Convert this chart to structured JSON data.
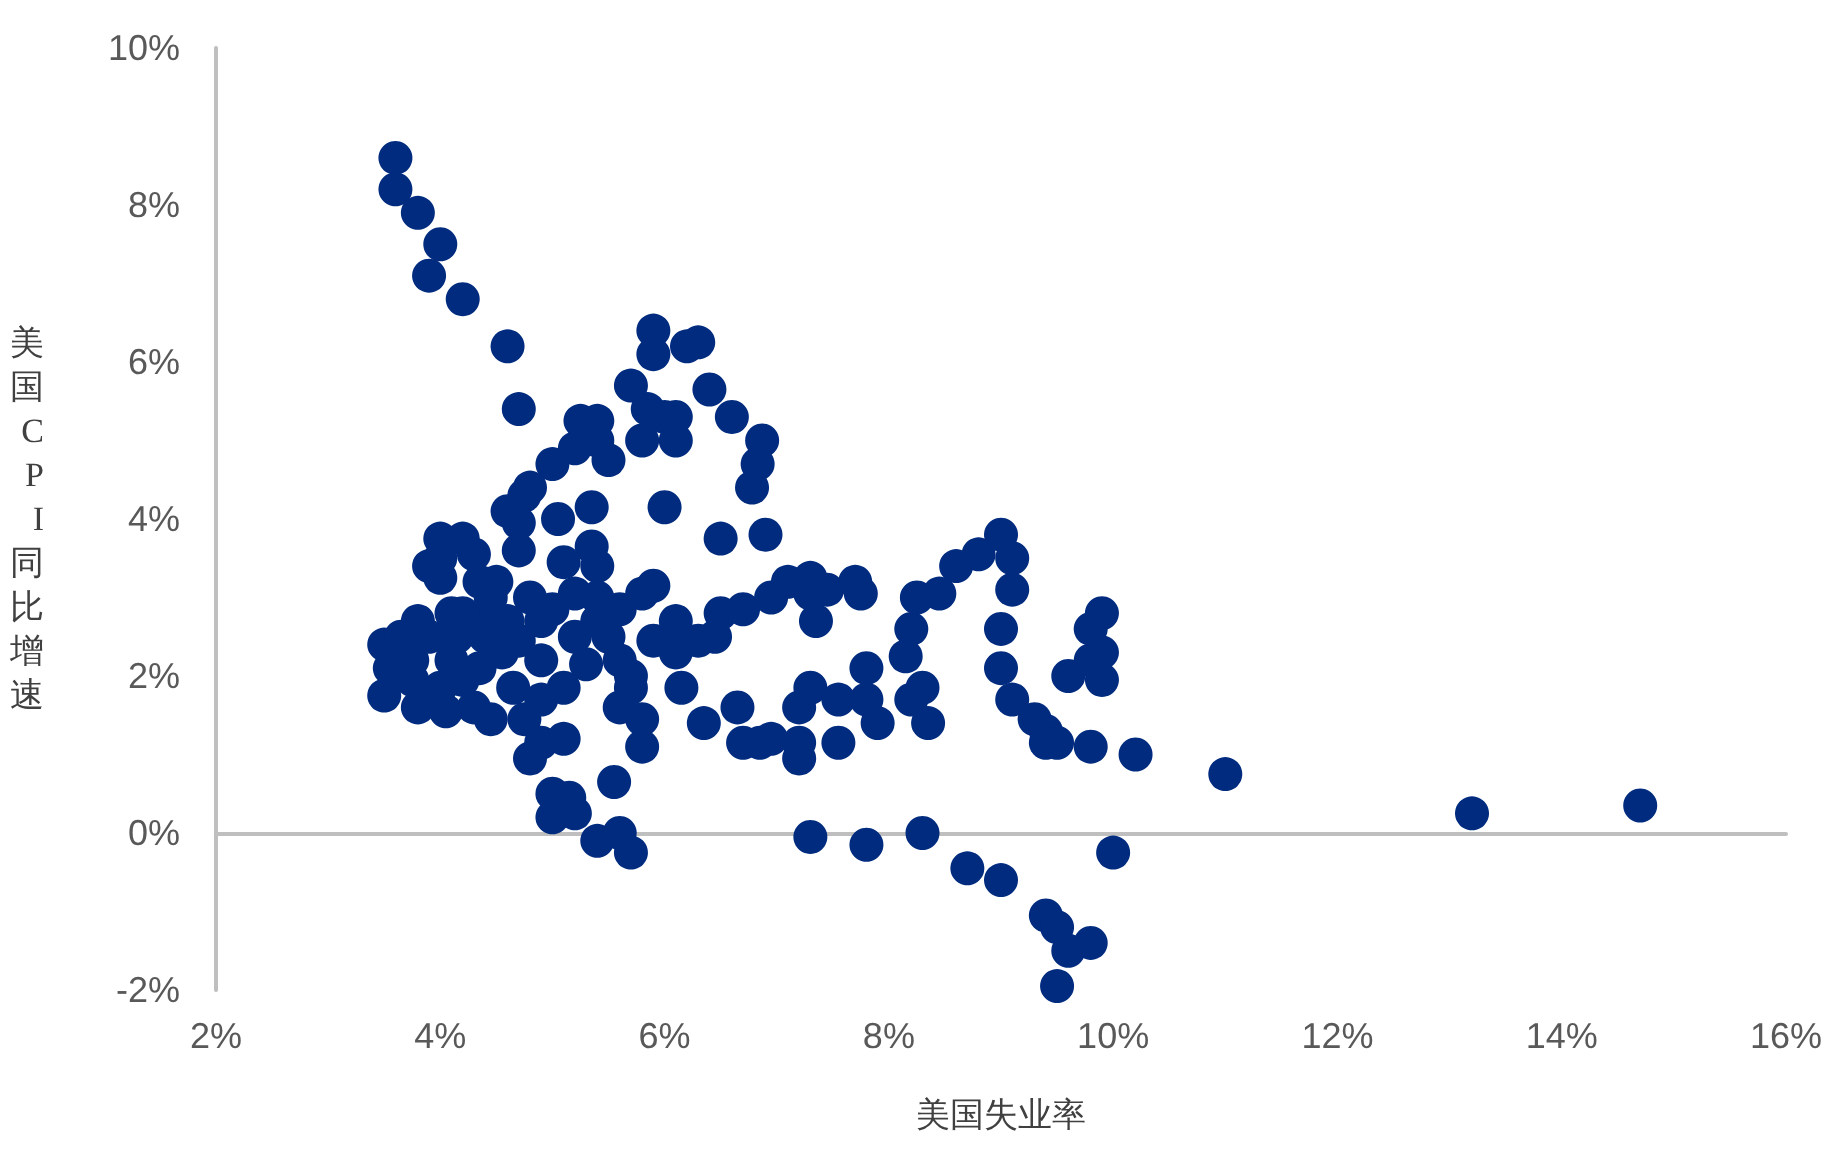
{
  "chart_data": {
    "type": "scatter",
    "xlabel": "美国失业率",
    "ylabel": "美国CPI同比增速",
    "xlim": [
      2,
      16
    ],
    "xticks": [
      {
        "value": 2,
        "label": "2%"
      },
      {
        "value": 4,
        "label": "4%"
      },
      {
        "value": 6,
        "label": "6%"
      },
      {
        "value": 8,
        "label": "8%"
      },
      {
        "value": 10,
        "label": "10%"
      },
      {
        "value": 12,
        "label": "12%"
      },
      {
        "value": 14,
        "label": "14%"
      },
      {
        "value": 16,
        "label": "16%"
      }
    ],
    "ylim": [
      -2,
      10
    ],
    "yticks": [
      {
        "value": -2,
        "label": "-2%"
      },
      {
        "value": 0,
        "label": "0%"
      },
      {
        "value": 2,
        "label": "2%"
      },
      {
        "value": 4,
        "label": "4%"
      },
      {
        "value": 6,
        "label": "6%"
      },
      {
        "value": 8,
        "label": "8%"
      },
      {
        "value": 10,
        "label": "10%"
      }
    ],
    "marker": "circle",
    "series": [
      {
        "color": "#002b7f",
        "x": [
          3.6,
          3.6,
          3.8,
          4.0,
          3.9,
          4.2,
          4.6,
          4.7,
          5.9,
          5.9,
          6.2,
          6.3,
          5.7,
          5.85,
          6.0,
          6.4,
          6.6,
          6.87,
          6.83,
          6.78,
          6.1,
          6.1,
          5.8,
          6.0,
          6.5,
          6.9,
          5.25,
          5.4,
          5.2,
          5.4,
          5.5,
          5.0,
          4.8,
          4.75,
          4.6,
          4.7,
          5.05,
          5.35,
          5.35,
          5.1,
          5.4,
          3.5,
          3.5,
          3.55,
          3.75,
          3.75,
          3.8,
          3.8,
          3.9,
          4.0,
          4.0,
          4.05,
          4.2,
          4.3,
          4.35,
          4.5,
          4.35,
          4.15,
          4.2,
          4.3,
          4.45,
          4.35,
          4.1,
          4.65,
          4.75,
          4.9,
          4.8,
          4.9,
          5.1,
          5.0,
          5.0,
          5.2,
          5.15,
          5.4,
          5.6,
          5.7,
          5.55,
          4.6,
          4.8,
          5.0,
          5.2,
          5.4,
          5.6,
          5.8,
          5.9,
          4.7,
          4.9,
          5.3,
          5.5,
          5.6,
          5.7,
          5.8,
          5.8,
          5.9,
          6.1,
          6.1,
          6.15,
          6.3,
          6.45,
          6.5,
          6.7,
          6.95,
          7.1,
          7.3,
          7.45,
          7.75,
          7.7,
          6.35,
          6.65,
          6.7,
          6.85,
          6.95,
          7.2,
          7.2,
          7.2,
          7.3,
          7.55,
          7.55,
          7.8,
          7.8,
          7.9,
          8.2,
          8.3,
          8.35,
          7.35,
          7.3,
          8.15,
          8.2,
          8.25,
          8.45,
          8.6,
          8.8,
          9.0,
          9.1,
          9.1,
          9.0,
          9.0,
          9.1,
          9.3,
          9.4,
          9.4,
          9.5,
          9.8,
          10.2,
          9.6,
          9.8,
          9.9,
          9.9,
          9.9,
          9.8,
          11.0,
          13.2,
          14.7,
          7.3,
          7.8,
          8.3,
          8.7,
          9.0,
          9.4,
          9.5,
          9.6,
          9.8,
          9.5,
          10.0,
          4.1,
          4.2,
          3.9,
          3.65,
          4.0,
          4.55,
          4.0,
          4.45,
          4.7,
          4.9,
          5.2,
          5.1,
          5.4,
          5.6,
          5.7,
          4.4
        ],
        "values": [
          8.6,
          8.2,
          7.9,
          7.5,
          7.1,
          6.8,
          6.2,
          5.4,
          6.4,
          6.1,
          6.2,
          6.25,
          5.7,
          5.4,
          5.3,
          5.65,
          5.3,
          5.0,
          4.7,
          4.4,
          5.3,
          5.0,
          5.0,
          4.15,
          3.75,
          3.8,
          5.25,
          5.25,
          4.9,
          5.0,
          4.75,
          4.7,
          4.4,
          4.3,
          4.1,
          3.95,
          4.0,
          4.15,
          3.65,
          3.45,
          3.4,
          2.4,
          1.75,
          2.1,
          1.95,
          2.2,
          1.6,
          2.7,
          3.4,
          3.75,
          3.25,
          1.55,
          3.75,
          3.55,
          3.2,
          3.2,
          2.7,
          2.5,
          1.95,
          1.6,
          1.45,
          2.1,
          2.2,
          1.85,
          1.45,
          1.7,
          0.95,
          1.15,
          1.2,
          0.5,
          0.2,
          0.25,
          0.45,
          -0.1,
          0.0,
          -0.25,
          0.65,
          2.7,
          3.0,
          2.85,
          3.05,
          3.0,
          2.85,
          3.05,
          3.15,
          2.45,
          2.2,
          2.15,
          2.5,
          2.2,
          1.85,
          1.45,
          1.1,
          2.45,
          2.7,
          2.3,
          1.85,
          2.45,
          2.5,
          2.8,
          2.85,
          3.0,
          3.2,
          3.25,
          3.1,
          3.05,
          3.2,
          1.4,
          1.6,
          1.15,
          1.15,
          1.2,
          1.6,
          0.95,
          1.15,
          1.85,
          1.7,
          1.15,
          2.1,
          1.7,
          1.4,
          1.7,
          1.85,
          1.4,
          2.7,
          3.05,
          2.25,
          2.6,
          3.0,
          3.05,
          3.4,
          3.55,
          3.8,
          3.5,
          3.1,
          2.6,
          2.1,
          1.7,
          1.45,
          1.3,
          1.15,
          1.15,
          1.1,
          1.0,
          2.0,
          2.2,
          2.8,
          2.3,
          1.95,
          2.6,
          0.75,
          0.25,
          0.35,
          -0.05,
          -0.15,
          0.0,
          -0.45,
          -0.6,
          -1.05,
          -1.2,
          -1.5,
          -1.4,
          -1.95,
          -0.25,
          2.8,
          2.8,
          2.5,
          2.5,
          1.85,
          2.3,
          3.5,
          3.0,
          3.6,
          2.7,
          2.5,
          1.85,
          2.7,
          1.6,
          2.0,
          2.5
        ]
      }
    ]
  }
}
